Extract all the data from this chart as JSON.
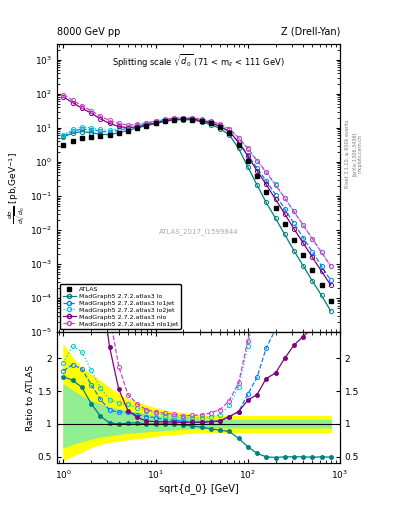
{
  "title_left": "8000 GeV pp",
  "title_right": "Z (Drell-Yan)",
  "plot_title": "Splitting scale $\\sqrt{d_0}$ (71 < m$_{ll}$ < 111 GeV)",
  "xlabel": "sqrt{d_0} [GeV]",
  "ylabel_ratio": "Ratio to ATLAS",
  "watermark": "ATLAS_2017_I1599844",
  "colors": {
    "atlas": "#000000",
    "lo": "#008080",
    "lo1jet": "#0080ff",
    "lo2jet": "#00cccc",
    "nlo": "#800080",
    "nlo1jet": "#cc44cc"
  },
  "atlas_x": [
    1.0,
    1.26,
    1.58,
    2.0,
    2.51,
    3.16,
    3.98,
    5.01,
    6.31,
    7.94,
    10.0,
    12.6,
    15.8,
    20.0,
    25.1,
    31.6,
    39.8,
    50.1,
    63.1,
    79.4,
    100.0,
    126.0,
    158.0,
    200.0,
    251.0,
    316.0,
    398.0,
    501.0,
    631.0,
    794.0
  ],
  "atlas_y": [
    3.2,
    4.2,
    5.0,
    5.5,
    5.8,
    6.2,
    7.2,
    8.3,
    9.8,
    11.5,
    13.5,
    15.5,
    17.0,
    17.8,
    17.5,
    15.8,
    13.5,
    10.5,
    7.0,
    3.2,
    1.1,
    0.38,
    0.13,
    0.045,
    0.015,
    0.005,
    0.0018,
    0.00065,
    0.00024,
    8.5e-05
  ],
  "atlas_yerr_lo": [
    0.3,
    0.35,
    0.4,
    0.4,
    0.4,
    0.45,
    0.5,
    0.6,
    0.7,
    0.85,
    1.0,
    1.1,
    1.2,
    1.3,
    1.2,
    1.1,
    1.0,
    0.75,
    0.5,
    0.25,
    0.085,
    0.03,
    0.01,
    0.0035,
    0.0012,
    0.0004,
    0.00015,
    5e-05,
    2e-05,
    7e-06
  ],
  "atlas_yerr_hi": [
    0.3,
    0.35,
    0.4,
    0.4,
    0.4,
    0.45,
    0.5,
    0.6,
    0.7,
    0.85,
    1.0,
    1.1,
    1.2,
    1.3,
    1.2,
    1.1,
    1.0,
    0.75,
    0.5,
    0.25,
    0.085,
    0.03,
    0.01,
    0.0035,
    0.0012,
    0.0004,
    0.00015,
    5e-05,
    2e-05,
    7e-06
  ],
  "lo_x": [
    1.0,
    1.26,
    1.58,
    2.0,
    2.51,
    3.16,
    3.98,
    5.01,
    6.31,
    7.94,
    10.0,
    12.6,
    15.8,
    20.0,
    25.1,
    31.6,
    39.8,
    50.1,
    63.1,
    79.4,
    100.0,
    126.0,
    158.0,
    200.0,
    251.0,
    316.0,
    398.0,
    501.0,
    631.0,
    794.0
  ],
  "lo_y": [
    5.5,
    7.0,
    7.8,
    7.2,
    6.5,
    6.3,
    7.2,
    8.4,
    10.0,
    11.5,
    13.5,
    15.5,
    17.0,
    17.5,
    17.0,
    15.0,
    12.5,
    9.5,
    6.2,
    2.5,
    0.72,
    0.21,
    0.065,
    0.022,
    0.0075,
    0.0025,
    0.0009,
    0.00032,
    0.00012,
    4.2e-05
  ],
  "lo1jet_x": [
    1.0,
    1.26,
    1.58,
    2.0,
    2.51,
    3.16,
    3.98,
    5.01,
    6.31,
    7.94,
    10.0,
    12.6,
    15.8,
    20.0,
    25.1,
    31.6,
    39.8,
    50.1,
    63.1,
    79.4,
    100.0,
    126.0,
    158.0,
    200.0,
    251.0,
    316.0,
    398.0,
    501.0,
    631.0,
    794.0
  ],
  "lo1jet_y": [
    5.8,
    8.0,
    9.2,
    8.8,
    8.0,
    7.5,
    8.5,
    9.8,
    11.2,
    12.8,
    14.8,
    16.5,
    18.0,
    18.5,
    18.2,
    16.2,
    14.0,
    11.0,
    7.8,
    3.8,
    1.6,
    0.65,
    0.28,
    0.11,
    0.042,
    0.016,
    0.006,
    0.0023,
    0.00088,
    0.00033
  ],
  "lo2jet_x": [
    1.0,
    1.26,
    1.58,
    2.0,
    2.51,
    3.16,
    3.98,
    5.01,
    6.31,
    7.94,
    10.0,
    12.6,
    15.8,
    20.0,
    25.1,
    31.6,
    39.8,
    50.1,
    63.1,
    79.4,
    100.0,
    126.0,
    158.0,
    200.0,
    251.0,
    316.0,
    398.0,
    501.0,
    631.0,
    794.0
  ],
  "lo2jet_y": [
    6.2,
    9.2,
    10.5,
    10.0,
    9.0,
    8.5,
    9.5,
    10.8,
    12.2,
    13.8,
    15.8,
    17.5,
    19.0,
    19.5,
    19.2,
    17.2,
    15.0,
    12.0,
    9.0,
    5.0,
    2.4,
    1.1,
    0.52,
    0.22,
    0.09,
    0.036,
    0.014,
    0.0055,
    0.0022,
    0.00088
  ],
  "nlo_x": [
    1.0,
    1.26,
    1.58,
    2.0,
    2.51,
    3.16,
    3.98,
    5.01,
    6.31,
    7.94,
    10.0,
    12.6,
    15.8,
    20.0,
    25.1,
    31.6,
    39.8,
    50.1,
    63.1,
    79.4,
    100.0,
    126.0,
    158.0,
    200.0,
    251.0,
    316.0,
    398.0,
    501.0,
    631.0,
    794.0
  ],
  "nlo_y": [
    80.0,
    55.0,
    38.0,
    27.0,
    18.5,
    13.5,
    11.0,
    10.0,
    10.8,
    12.0,
    14.0,
    16.0,
    17.5,
    18.2,
    18.0,
    16.2,
    14.0,
    11.0,
    7.8,
    3.8,
    1.5,
    0.55,
    0.22,
    0.08,
    0.03,
    0.011,
    0.0042,
    0.0016,
    0.00062,
    0.00024
  ],
  "nlo1jet_x": [
    1.0,
    1.26,
    1.58,
    2.0,
    2.51,
    3.16,
    3.98,
    5.01,
    6.31,
    7.94,
    10.0,
    12.6,
    15.8,
    20.0,
    25.1,
    31.6,
    39.8,
    50.1,
    63.1,
    79.4,
    100.0,
    126.0,
    158.0,
    200.0,
    251.0,
    316.0,
    398.0,
    501.0,
    631.0,
    794.0
  ],
  "nlo1jet_y": [
    95.0,
    65.0,
    45.0,
    32.0,
    22.0,
    16.5,
    13.5,
    12.0,
    12.8,
    14.0,
    16.0,
    18.0,
    19.5,
    20.0,
    19.8,
    18.0,
    15.8,
    12.8,
    9.5,
    5.2,
    2.5,
    1.1,
    0.5,
    0.21,
    0.088,
    0.035,
    0.014,
    0.0056,
    0.0022,
    0.00088
  ],
  "band_yellow_lo": [
    0.45,
    0.52,
    0.58,
    0.65,
    0.7,
    0.73,
    0.75,
    0.77,
    0.79,
    0.8,
    0.82,
    0.84,
    0.85,
    0.86,
    0.87,
    0.88,
    0.88,
    0.88,
    0.88,
    0.88,
    0.88,
    0.88,
    0.88,
    0.88,
    0.88,
    0.88,
    0.88,
    0.88,
    0.88,
    0.88
  ],
  "band_yellow_hi": [
    2.2,
    2.0,
    1.85,
    1.75,
    1.65,
    1.55,
    1.45,
    1.38,
    1.32,
    1.28,
    1.24,
    1.2,
    1.18,
    1.16,
    1.14,
    1.13,
    1.12,
    1.12,
    1.12,
    1.12,
    1.12,
    1.12,
    1.12,
    1.12,
    1.12,
    1.12,
    1.12,
    1.12,
    1.12,
    1.12
  ],
  "band_green_lo": [
    0.65,
    0.7,
    0.74,
    0.78,
    0.81,
    0.83,
    0.85,
    0.87,
    0.88,
    0.89,
    0.9,
    0.91,
    0.92,
    0.93,
    0.94,
    0.94,
    0.95,
    0.95,
    0.95,
    0.95,
    0.95,
    0.95,
    0.95,
    0.95,
    0.95,
    0.95,
    0.95,
    0.95,
    0.95,
    0.95
  ],
  "band_green_hi": [
    1.6,
    1.5,
    1.42,
    1.35,
    1.3,
    1.25,
    1.22,
    1.19,
    1.17,
    1.15,
    1.12,
    1.11,
    1.1,
    1.09,
    1.08,
    1.07,
    1.06,
    1.06,
    1.06,
    1.06,
    1.06,
    1.06,
    1.06,
    1.06,
    1.06,
    1.06,
    1.06,
    1.06,
    1.06,
    1.06
  ]
}
